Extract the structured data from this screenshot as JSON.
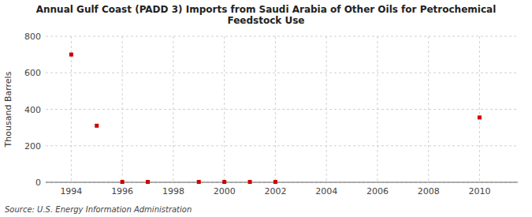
{
  "chart_data": {
    "type": "scatter",
    "title": "Annual Gulf Coast (PADD 3) Imports from Saudi Arabia of Other Oils for Petrochemical\nFeedstock Use",
    "ylabel": "Thousand Barrels",
    "annotations": [
      "Source: U.S. Energy Information Administration"
    ],
    "x": [
      1994,
      1995,
      1996,
      1997,
      1999,
      2000,
      2001,
      2002,
      2010
    ],
    "values": [
      700,
      310,
      2,
      2,
      2,
      2,
      2,
      2,
      355
    ],
    "color": "#cc0000",
    "marker": "square",
    "xlim": [
      1993.0,
      2011.5
    ],
    "ylim": [
      0,
      800
    ],
    "xticks": [
      1994,
      1996,
      1998,
      2000,
      2002,
      2004,
      2006,
      2008,
      2010
    ],
    "yticks": [
      0,
      200,
      400,
      600,
      800
    ],
    "grid": true
  }
}
